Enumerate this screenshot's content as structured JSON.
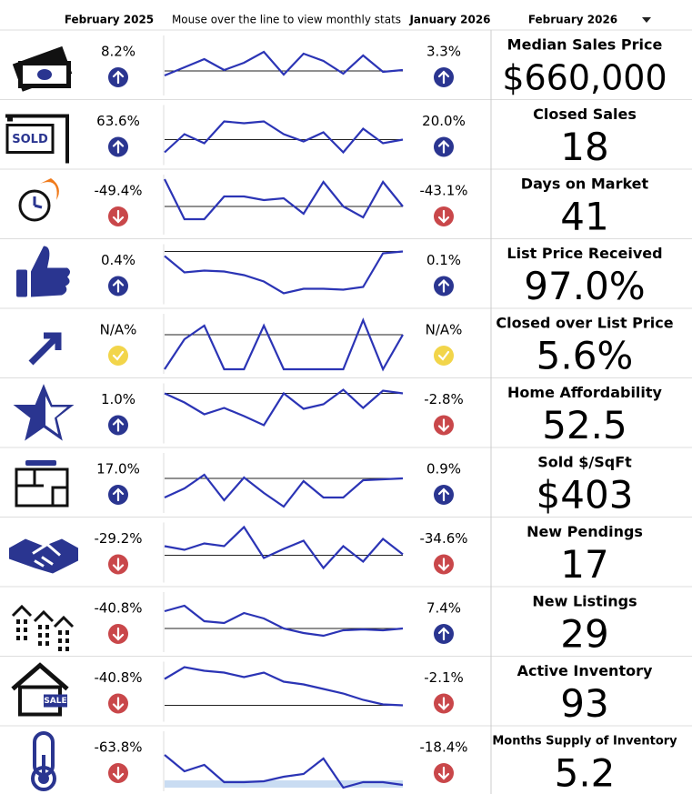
{
  "header": {
    "col1": "February 2025",
    "col2": "Mouse over the line to view monthly stats",
    "col3": "January 2026",
    "col4": "February 2026"
  },
  "spark_ylim": [
    0,
    62
  ],
  "rows": [
    {
      "label": "Median Sales Price",
      "value": "$660,000",
      "prev_year": "8.2%",
      "prev_year_trend": "up",
      "prev_month": "3.3%",
      "prev_month_trend": "up",
      "spark": [
        20,
        29,
        38,
        26,
        34,
        46,
        21,
        44,
        36,
        22,
        42,
        24,
        26
      ],
      "baseline": 25
    },
    {
      "label": "Closed Sales",
      "value": "18",
      "prev_year": "63.6%",
      "prev_year_trend": "up",
      "prev_month": "20.0%",
      "prev_month_trend": "up",
      "spark": [
        12,
        32,
        22,
        46,
        44,
        46,
        32,
        24,
        34,
        12,
        38,
        22,
        26
      ],
      "baseline": 26
    },
    {
      "label": "Days on Market",
      "value": "41",
      "prev_year": "-49.4%",
      "prev_year_trend": "down",
      "prev_month": "-43.1%",
      "prev_month_trend": "down",
      "spark": [
        59,
        15,
        15,
        40,
        40,
        36,
        38,
        21,
        56,
        29,
        17,
        56,
        29
      ],
      "baseline": 29
    },
    {
      "label": "List Price Received",
      "value": "97.0%",
      "prev_year": "0.4%",
      "prev_year_trend": "up",
      "prev_month": "0.1%",
      "prev_month_trend": "up",
      "spark": [
        51,
        33,
        35,
        34,
        30,
        23,
        10,
        15,
        15,
        14,
        17,
        54,
        56
      ],
      "baseline": 56
    },
    {
      "label": "Closed over List Price",
      "value": "5.6%",
      "prev_year": "N/A%",
      "prev_year_trend": "neutral",
      "prev_month": "N/A%",
      "prev_month_trend": "neutral",
      "spark": [
        3,
        36,
        51,
        3,
        3,
        51,
        3,
        3,
        3,
        3,
        57,
        3,
        41
      ],
      "baseline": 41
    },
    {
      "label": "Home Affordability",
      "value": "52.5",
      "prev_year": "1.0%",
      "prev_year_trend": "up",
      "prev_month": "-2.8%",
      "prev_month_trend": "down",
      "spark": [
        53,
        43,
        30,
        37,
        28,
        18,
        53,
        36,
        41,
        57,
        37,
        56,
        53
      ],
      "baseline": 53
    },
    {
      "label": "Sold $/SqFt",
      "value": "$403",
      "prev_year": "17.0%",
      "prev_year_trend": "up",
      "prev_month": "0.9%",
      "prev_month_trend": "up",
      "spark": [
        15,
        25,
        40,
        12,
        37,
        20,
        5,
        33,
        15,
        15,
        34,
        35,
        36
      ],
      "baseline": 36
    },
    {
      "label": "New Pendings",
      "value": "17",
      "prev_year": "-29.2%",
      "prev_year_trend": "down",
      "prev_month": "-34.6%",
      "prev_month_trend": "down",
      "spark": [
        38,
        34,
        41,
        38,
        59,
        25,
        35,
        44,
        14,
        38,
        21,
        46,
        29
      ],
      "baseline": 28
    },
    {
      "label": "New Listings",
      "value": "29",
      "prev_year": "-40.8%",
      "prev_year_trend": "down",
      "prev_month": "7.4%",
      "prev_month_trend": "up",
      "spark": [
        43,
        49,
        32,
        30,
        41,
        35,
        24,
        19,
        16,
        22,
        23,
        22,
        24
      ],
      "baseline": 24
    },
    {
      "label": "Active Inventory",
      "value": "93",
      "prev_year": "-40.8%",
      "prev_year_trend": "down",
      "prev_month": "-2.1%",
      "prev_month_trend": "down",
      "spark": [
        45,
        58,
        54,
        52,
        47,
        52,
        42,
        39,
        34,
        29,
        22,
        17,
        16
      ],
      "baseline": 16
    },
    {
      "label": "Months Supply of Inventory",
      "value": "5.2",
      "prev_year": "-63.8%",
      "prev_year_trend": "down",
      "prev_month": "-18.4%",
      "prev_month_trend": "down",
      "spark": [
        38,
        20,
        27,
        8,
        8,
        9,
        14,
        17,
        34,
        2,
        8,
        8,
        5
      ],
      "baseline": 6
    }
  ]
}
